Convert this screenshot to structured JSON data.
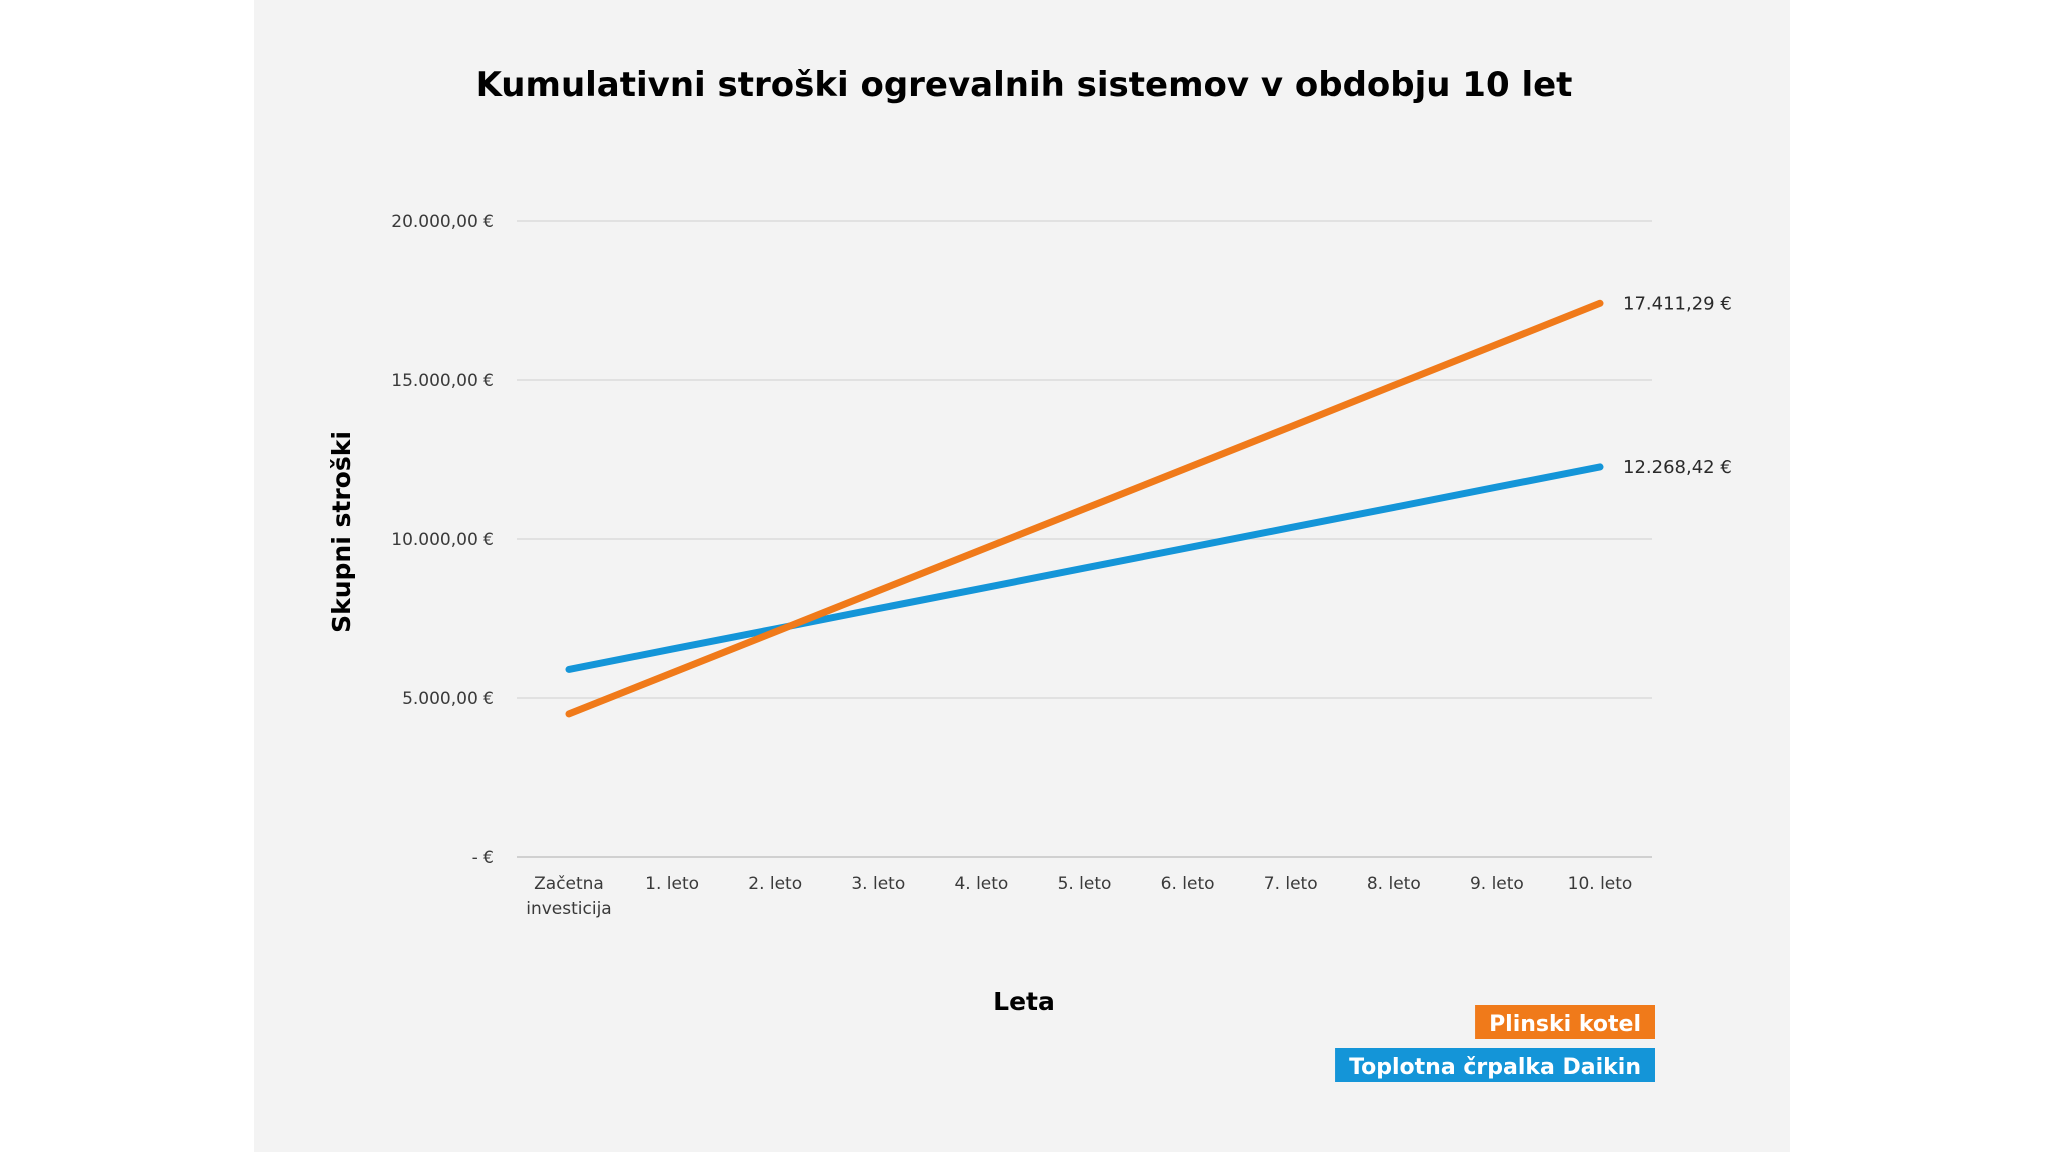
{
  "chart_data": {
    "type": "line",
    "title": "Kumulativni stroški ogrevalnih sistemov v obdobju 10 let",
    "xlabel": "Leta",
    "ylabel": "Skupni stroški",
    "categories": [
      [
        "Začetna",
        "investicija"
      ],
      [
        "1. leto"
      ],
      [
        "2. leto"
      ],
      [
        "3. leto"
      ],
      [
        "4. leto"
      ],
      [
        "5. leto"
      ],
      [
        "6. leto"
      ],
      [
        "7. leto"
      ],
      [
        "8. leto"
      ],
      [
        "9. leto"
      ],
      [
        "10. leto"
      ]
    ],
    "ylim": [
      0,
      20000
    ],
    "yticks": [
      0,
      5000,
      10000,
      15000,
      20000
    ],
    "ytick_labels": [
      "-  €",
      "5.000,00 €",
      "10.000,00 €",
      "15.000,00 €",
      "20.000,00 €"
    ],
    "grid": true,
    "legend_position": "bottom-right",
    "series": [
      {
        "name": "Plinski kotel",
        "color": "#f07a1a",
        "values": [
          4500,
          5790,
          7080,
          8370,
          9660,
          10950,
          12240,
          13530,
          14830,
          16120,
          17411.29
        ],
        "end_label": "17.411,29 €"
      },
      {
        "name": "Toplotna črpalka Daikin",
        "color": "#1495d8",
        "values": [
          5900,
          6537,
          7174,
          7811,
          8448,
          9085,
          9722,
          10359,
          10995,
          11632,
          12268.42
        ],
        "end_label": "12.268,42 €"
      }
    ]
  }
}
